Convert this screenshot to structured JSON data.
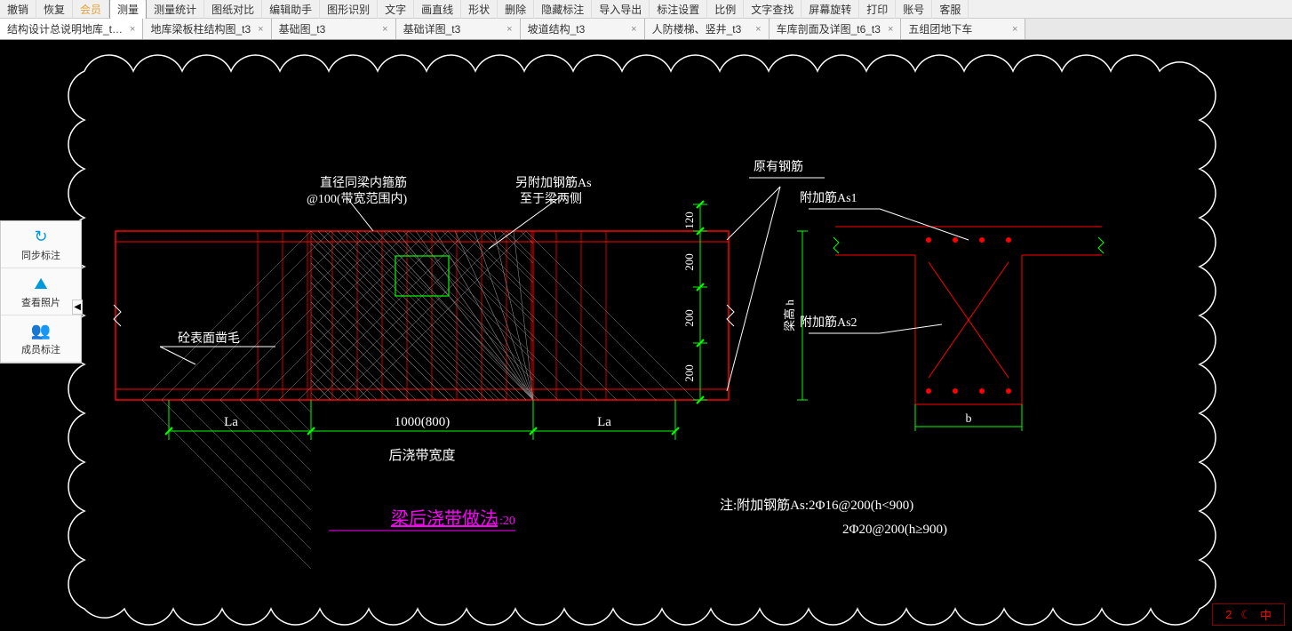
{
  "toolbar": {
    "items": [
      {
        "label": "撤销"
      },
      {
        "label": "恢复"
      },
      {
        "label": "会员",
        "cls": "vip"
      },
      {
        "label": "测量",
        "cls": "active"
      },
      {
        "label": "测量统计"
      },
      {
        "label": "图纸对比"
      },
      {
        "label": "编辑助手"
      },
      {
        "label": "图形识别"
      },
      {
        "label": "文字"
      },
      {
        "label": "画直线"
      },
      {
        "label": "形状"
      },
      {
        "label": "删除"
      },
      {
        "label": "隐藏标注"
      },
      {
        "label": "导入导出"
      },
      {
        "label": "标注设置"
      },
      {
        "label": "比例"
      },
      {
        "label": "文字查找"
      },
      {
        "label": "屏幕旋转"
      },
      {
        "label": "打印"
      },
      {
        "label": "账号"
      },
      {
        "label": "客服"
      }
    ]
  },
  "tabs": {
    "items": [
      {
        "label": "结构设计总说明地库_t…",
        "active": true
      },
      {
        "label": "地库梁板柱结构图_t3"
      },
      {
        "label": "基础图_t3"
      },
      {
        "label": "基础详图_t3"
      },
      {
        "label": "坡道结构_t3"
      },
      {
        "label": "人防楼梯、竖井_t3"
      },
      {
        "label": "车库剖面及详图_t6_t3"
      },
      {
        "label": "五组团地下车"
      }
    ]
  },
  "side": {
    "items": [
      {
        "icon": "↻",
        "label": "同步标注"
      },
      {
        "icon": "⛰",
        "label": "查看照片"
      },
      {
        "icon": "👥",
        "label": "成员标注"
      }
    ]
  },
  "drawing": {
    "colors": {
      "cloud": "#ffffff",
      "beam": "#ff0000",
      "dim": "#00ff00",
      "text": "#ffffff",
      "title": "#ff00ff",
      "section": "#ff0000",
      "hatch": "#888888"
    },
    "labels": {
      "t1a": "直径同梁内箍筋",
      "t1b": "@100(带宽范围内)",
      "t2a": "另附加钢筋As",
      "t2b": "至于梁两侧",
      "t3": "原有钢筋",
      "t4": "附加筋As1",
      "t5": "附加筋As2",
      "t6": "砼表面凿毛",
      "t7": "后浇带宽度",
      "title": "梁后浇带做法",
      "scale": "1:20",
      "note1": "注:附加钢筋As:2Φ16@200(h<900)",
      "note2": "2Φ20@200(h≥900)",
      "dimLa": "La",
      "dim1000": "1000(800)",
      "dim120": "120",
      "dim200": "200",
      "dimH": "梁高 h",
      "dimB": "b"
    }
  },
  "status": {
    "val": "2",
    "sym": "中"
  }
}
